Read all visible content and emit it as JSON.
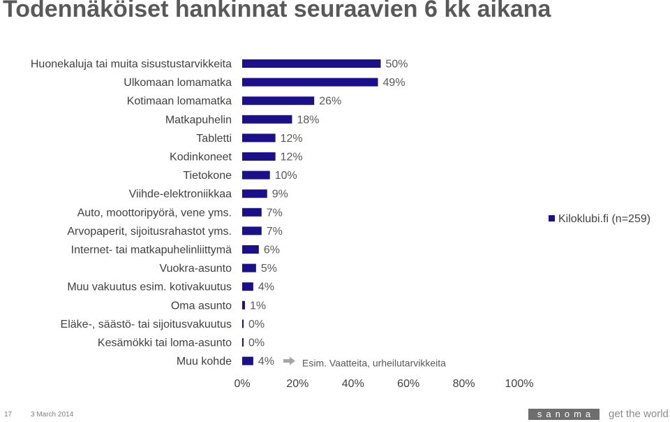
{
  "title": "Todennäköiset hankinnat seuraavien 6 kk aikana",
  "chart_data": {
    "type": "bar",
    "orientation": "horizontal",
    "title": "Todennäköiset hankinnat seuraavien 6 kk aikana",
    "categories": [
      "Huonekaluja tai muita sisustustarvikkeita",
      "Ulkomaan lomamatka",
      "Kotimaan lomamatka",
      "Matkapuhelin",
      "Tabletti",
      "Kodinkoneet",
      "Tietokone",
      "Viihde-elektroniikkaa",
      "Auto, moottoripyörä, vene yms.",
      "Arvopaperit, sijoitusrahastot yms.",
      "Internet- tai matkapuhelinliittymä",
      "Vuokra-asunto",
      "Muu vakuutus esim. kotivakuutus",
      "Oma asunto",
      "Eläke-, säästö- tai sijoitusvakuutus",
      "Kesämökki tai loma-asunto",
      "Muu kohde"
    ],
    "series": [
      {
        "name": "Kiloklubi.fi (n=259)",
        "values": [
          50,
          49,
          26,
          18,
          12,
          12,
          10,
          9,
          7,
          7,
          6,
          5,
          4,
          1,
          0.5,
          0,
          4
        ],
        "labels": [
          "50%",
          "49%",
          "26%",
          "18%",
          "12%",
          "12%",
          "10%",
          "9%",
          "7%",
          "7%",
          "6%",
          "5%",
          "4%",
          "1%",
          "0%",
          "0%",
          "4%"
        ],
        "color": "#1b0f8a"
      }
    ],
    "xlim": [
      0,
      100
    ],
    "xticks": [
      "0%",
      "20%",
      "40%",
      "60%",
      "80%",
      "100%"
    ],
    "xtick_values": [
      0,
      20,
      40,
      60,
      80,
      100
    ],
    "legend_position": "right",
    "annotation": {
      "text": "Esim. Vaatteita, urheilutarvikkeita",
      "target": "Muu kohde",
      "arrow_color": "#a6a6a6"
    },
    "grid": false
  },
  "footer": {
    "page_number": "17",
    "date": "3 March 2014",
    "brand": "sanoma",
    "tagline": "get the world"
  }
}
